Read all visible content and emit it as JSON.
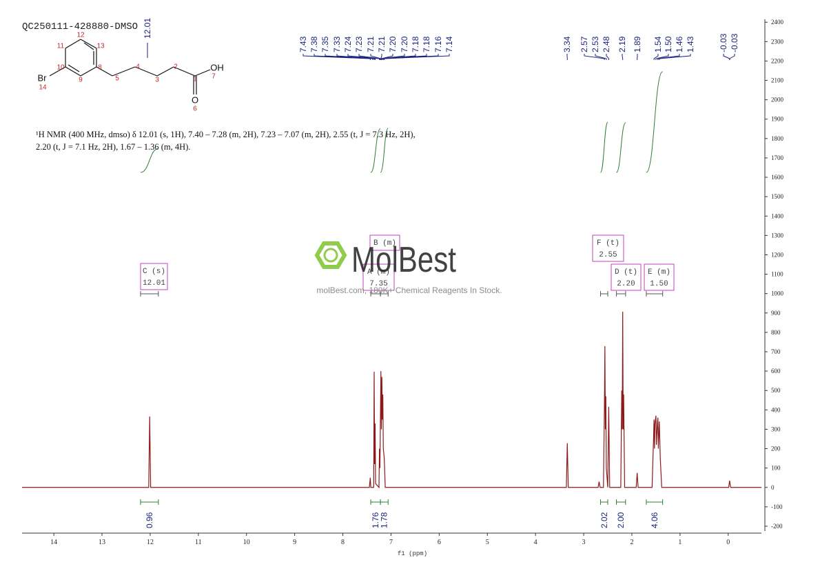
{
  "sample_id": "QC250111-428880-DMSO",
  "structure": {
    "labels": [
      "12",
      "11",
      "13",
      "10",
      "8",
      "9",
      "Br",
      "14",
      "5",
      "4",
      "3",
      "2",
      "1",
      "OH",
      "7",
      "O",
      "6"
    ]
  },
  "description": "¹H NMR (400 MHz, dmso) δ 12.01 (s, 1H), 7.40 – 7.28 (m, 2H), 7.23 – 7.07 (m, 2H), 2.55 (t, J = 7.3 Hz, 2H), 2.20 (t, J = 7.1 Hz, 2H), 1.67 – 1.36 (m, 4H).",
  "watermark": {
    "brand": "MolBest",
    "tagline": "molBest.com, 180K+ Chemical Reagents In Stock."
  },
  "chart_data": {
    "type": "line",
    "x_label": "f1 (ppm)",
    "color": "#8b1a1a",
    "x": [
      14.66,
      12.03,
      12.01,
      11.99,
      7.45,
      7.43,
      7.42,
      7.36,
      7.35,
      7.34,
      7.33,
      7.32,
      7.25,
      7.24,
      7.23,
      7.21,
      7.2,
      7.19,
      7.18,
      7.17,
      7.16,
      7.14,
      7.12,
      3.36,
      3.34,
      3.32,
      2.7,
      2.68,
      2.66,
      2.59,
      2.57,
      2.56,
      2.55,
      2.54,
      2.53,
      2.5,
      2.48,
      2.46,
      2.23,
      2.21,
      2.2,
      2.19,
      2.18,
      2.17,
      2.15,
      1.91,
      1.89,
      1.87,
      1.58,
      1.55,
      1.54,
      1.53,
      1.52,
      1.5,
      1.49,
      1.47,
      1.46,
      1.45,
      1.43,
      1.41,
      1.38,
      -0.01,
      -0.03,
      -0.05,
      -0.69
    ],
    "values": [
      0,
      0,
      366,
      0,
      0,
      50,
      0,
      0,
      597,
      120,
      330,
      20,
      0,
      200,
      100,
      600,
      300,
      570,
      350,
      480,
      200,
      150,
      0,
      0,
      228,
      0,
      0,
      30,
      0,
      0,
      400,
      729,
      300,
      470,
      100,
      0,
      416,
      0,
      0,
      500,
      300,
      907,
      300,
      480,
      0,
      0,
      75,
      0,
      0,
      250,
      350,
      200,
      330,
      370,
      220,
      330,
      360,
      200,
      340,
      150,
      0,
      0,
      35,
      0,
      0
    ],
    "xlim": [
      14.66,
      -0.69
    ],
    "xticks": [
      14,
      13,
      12,
      11,
      10,
      9,
      8,
      7,
      6,
      5,
      4,
      3,
      2,
      1,
      0
    ],
    "ylim": [
      -225,
      2415
    ],
    "yticks": [
      -200,
      -100,
      0,
      100,
      200,
      300,
      400,
      500,
      600,
      700,
      800,
      900,
      1000,
      1100,
      1200,
      1300,
      1400,
      1500,
      1600,
      1700,
      1800,
      1900,
      2000,
      2100,
      2200,
      2300,
      2400
    ],
    "peak_labels": [
      "12.01",
      "7.43",
      "7.38",
      "7.35",
      "7.33",
      "7.24",
      "7.23",
      "7.21",
      "7.21",
      "7.20",
      "7.20",
      "7.18",
      "7.18",
      "7.16",
      "7.14",
      "3.34",
      "2.57",
      "2.53",
      "2.48",
      "2.19",
      "1.89",
      "1.54",
      "1.50",
      "1.46",
      "1.43",
      "-0.03",
      "-0.03"
    ],
    "multiplets": [
      {
        "label": "C (s)",
        "shift": 12.01,
        "range": [
          12.2,
          11.83
        ]
      },
      {
        "label": "B (m)",
        "range": [
          7.22,
          7.06
        ]
      },
      {
        "label": "A (m)",
        "shift": 7.35,
        "range": [
          7.42,
          7.22
        ]
      },
      {
        "label": "F (t)",
        "shift": 2.55,
        "range": [
          2.65,
          2.5
        ]
      },
      {
        "label": "D (t)",
        "shift": {
          "value": 2.2,
          "label": "2.20"
        },
        "range": [
          2.32,
          2.13
        ]
      },
      {
        "label": "E (m)",
        "shift": {
          "value": 1.5,
          "label": "1.50"
        },
        "range": [
          1.7,
          1.36
        ]
      }
    ],
    "integrals": [
      {
        "range": [
          12.2,
          11.83
        ],
        "value": 0.96
      },
      {
        "range": [
          7.42,
          7.22
        ],
        "value": 1.76
      },
      {
        "range": [
          7.22,
          7.06
        ],
        "value": 1.78
      },
      {
        "range": [
          2.65,
          2.5
        ],
        "value": 2.02
      },
      {
        "range": [
          2.32,
          2.13
        ],
        "value": 2,
        "label": "2.00"
      },
      {
        "range": [
          1.7,
          1.36
        ],
        "value": 4.06
      }
    ]
  }
}
